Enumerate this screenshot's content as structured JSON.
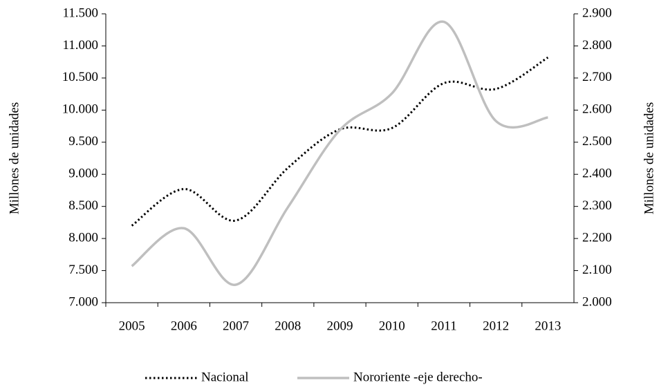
{
  "chart_data": {
    "type": "line",
    "categories": [
      "2005",
      "2006",
      "2007",
      "2008",
      "2009",
      "2010",
      "2011",
      "2012",
      "2013"
    ],
    "series": [
      {
        "name": "Nacional",
        "color": "#000000",
        "style": "dotted",
        "values": [
          8200,
          8770,
          8280,
          9100,
          9700,
          9720,
          10420,
          10330,
          10820
        ]
      },
      {
        "name": "Nororiente -eje derecho-",
        "color": "#bfbfbf",
        "style": "solid",
        "axis": "y2",
        "values": [
          2114,
          2232,
          2056,
          2297,
          2538,
          2652,
          2875,
          2566,
          2577
        ]
      }
    ],
    "ylabel": "Millones de unidades",
    "y2label": "Millones de unidades",
    "ylim": [
      7000,
      11500
    ],
    "yticks": [
      {
        "value": 7000,
        "label": "7.000"
      },
      {
        "value": 7500,
        "label": "7.500"
      },
      {
        "value": 8000,
        "label": "8.000"
      },
      {
        "value": 8500,
        "label": "8.500"
      },
      {
        "value": 9000,
        "label": "9.000"
      },
      {
        "value": 9500,
        "label": "9.500"
      },
      {
        "value": 10000,
        "label": "10.000"
      },
      {
        "value": 10500,
        "label": "10.500"
      },
      {
        "value": 11000,
        "label": "11.000"
      },
      {
        "value": 11500,
        "label": "11.500"
      }
    ],
    "y2lim": [
      2000,
      2900
    ],
    "y2ticks": [
      {
        "value": 2000,
        "label": "2.000"
      },
      {
        "value": 2100,
        "label": "2.100"
      },
      {
        "value": 2200,
        "label": "2.200"
      },
      {
        "value": 2300,
        "label": "2.300"
      },
      {
        "value": 2400,
        "label": "2.400"
      },
      {
        "value": 2500,
        "label": "2.500"
      },
      {
        "value": 2600,
        "label": "2.600"
      },
      {
        "value": 2700,
        "label": "2.700"
      },
      {
        "value": 2800,
        "label": "2.800"
      },
      {
        "value": 2900,
        "label": "2.900"
      }
    ],
    "smooth": true,
    "legend": "bottom"
  }
}
